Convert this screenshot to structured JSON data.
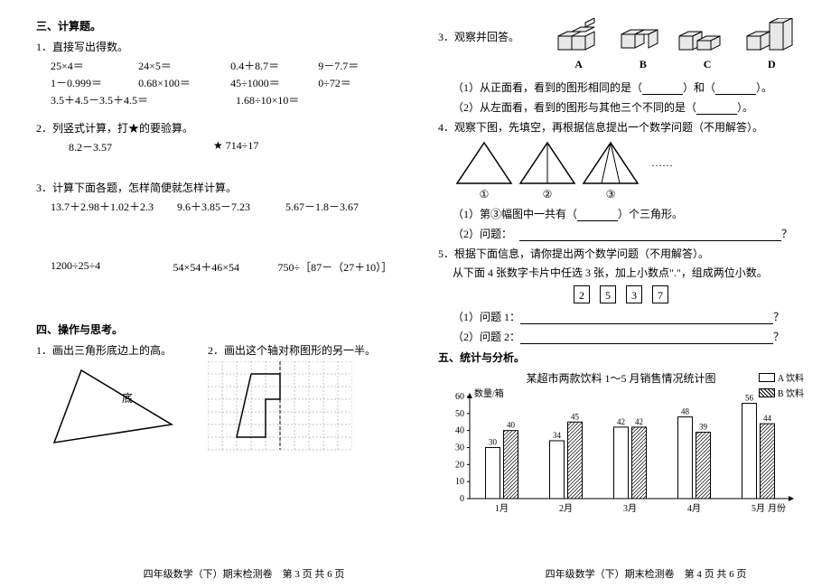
{
  "left": {
    "sec3_title": "三、计算题。",
    "q1_title": "1．直接写出得数。",
    "mental": [
      [
        "25×4＝",
        "24×5＝",
        "0.4＋8.7＝",
        "9－7.7＝"
      ],
      [
        "1－0.999＝",
        "0.68×100＝",
        "45÷1000＝",
        "0÷72＝"
      ],
      [
        "3.5＋4.5－3.5＋4.5＝",
        "",
        "1.68÷10×10＝",
        ""
      ]
    ],
    "q2_title": "2．列竖式计算，打★的要验算。",
    "q2_a": "8.2－3.57",
    "q2_b": "★ 714÷17",
    "q3_title": "3．计算下面各题，怎样简便就怎样计算。",
    "q3_row1": [
      "13.7＋2.98＋1.02＋2.3",
      "9.6＋3.85－7.23",
      "5.67－1.8－3.67"
    ],
    "q3_row2": [
      "1200÷25÷4",
      "54×54＋46×54",
      "750÷［87－（27＋10）］"
    ],
    "sec4_title": "四、操作与思考。",
    "op1": "1．画出三角形底边上的高。",
    "op2": "2．画出这个轴对称图形的另一半。",
    "base_label": "底",
    "footer": "四年级数学（下）期末检测卷　第 3 页 共 6 页"
  },
  "right": {
    "q3_title": "3．观察并回答。",
    "labels": [
      "A",
      "B",
      "C",
      "D"
    ],
    "q3_1": "（1）从正面看，看到的图形相同的是（",
    "q3_1_mid": "）和（",
    "q3_1_end": "）。",
    "q3_2": "（2）从左面看，看到的图形与其他三个不同的是（",
    "q3_2_end": "）。",
    "q4_title": "4．观察下图，先填空，再根据信息提出一个数学问题（不用解答）。",
    "tri_labels": [
      "①",
      "②",
      "③"
    ],
    "dots": "……",
    "q4_1a": "（1）第③幅图中一共有（",
    "q4_1b": "）个三角形。",
    "q4_2": "（2）问题：",
    "qmark": "？",
    "q5_title": "5．根据下面信息，请你提出两个数学问题（不用解答）。",
    "q5_sub": "从下面 4 张数字卡片中任选 3 张，加上小数点\".\"，组成两位小数。",
    "cards": [
      "2",
      "5",
      "3",
      "7"
    ],
    "q5_p1": "（1）问题 1：",
    "q5_p2": "（2）问题 2：",
    "sec5_title": "五、统计与分析。",
    "chart": {
      "title": "某超市两款饮料 1～5 月销售情况统计图",
      "ylabel": "数量/箱",
      "xlabel": "月份",
      "legend_a": "A 饮料",
      "legend_b": "B 饮料",
      "categories": [
        "1月",
        "2月",
        "3月",
        "4月",
        "5月"
      ],
      "series_a": [
        30,
        34,
        42,
        48,
        56
      ],
      "series_b": [
        40,
        45,
        42,
        39,
        44
      ],
      "ylim": [
        0,
        60
      ],
      "ytick_step": 10,
      "bar_colors": {
        "a": "#ffffff",
        "b": "hatch"
      },
      "axis_color": "#000"
    },
    "footer": "四年级数学（下）期末检测卷　第 4 页 共 6 页"
  }
}
